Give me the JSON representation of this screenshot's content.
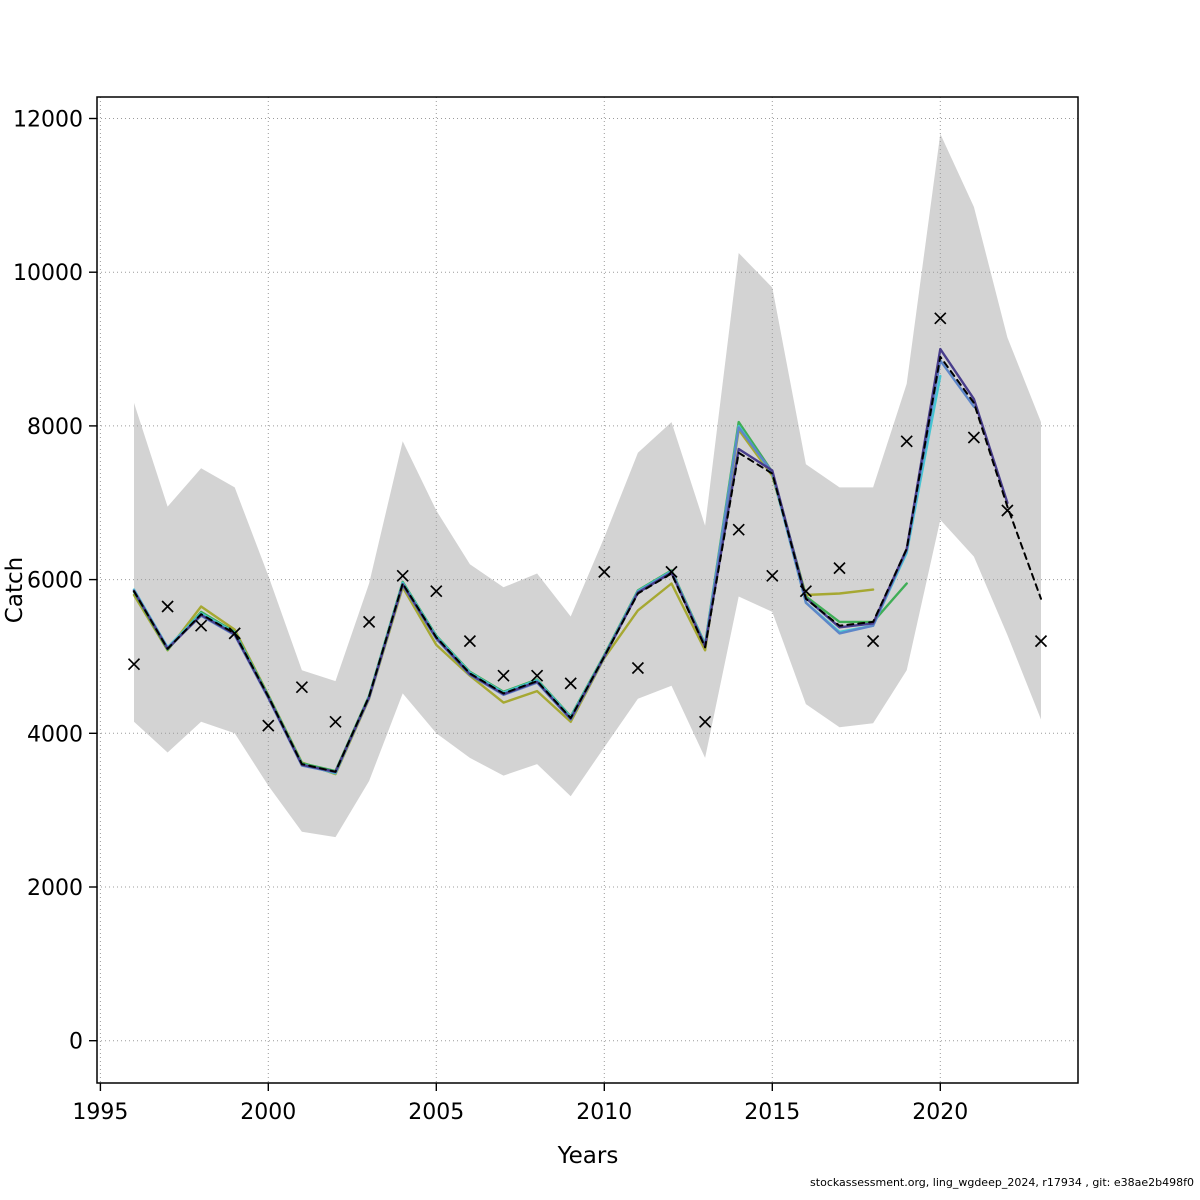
{
  "page": {
    "footer": "stockassessment.org, ling_wgdeep_2024, r17934 , git: e38ae2b498f0"
  },
  "chart_data": {
    "type": "line",
    "title": "",
    "xlabel": "Years",
    "ylabel": "Catch",
    "xlim": [
      1994.9,
      2024.1
    ],
    "ylim": [
      -550,
      12280
    ],
    "xticks": [
      1995,
      2000,
      2005,
      2010,
      2015,
      2020
    ],
    "yticks": [
      0,
      2000,
      4000,
      6000,
      8000,
      10000,
      12000
    ],
    "grid": "dotted",
    "legend_position": "none",
    "band": {
      "name": "confidence-band",
      "color": "#d3d3d3",
      "start_year": 1996,
      "upper": [
        8300,
        6950,
        7450,
        7200,
        6050,
        4820,
        4680,
        5950,
        7800,
        6900,
        6200,
        5900,
        6080,
        5520,
        6550,
        7650,
        8050,
        6700,
        10250,
        9800,
        7500,
        7200,
        7200,
        8550,
        11800,
        10850,
        9150,
        8050
      ],
      "lower": [
        4150,
        3750,
        4150,
        4000,
        3320,
        2720,
        2650,
        3380,
        4520,
        4000,
        3680,
        3450,
        3600,
        3180,
        3820,
        4450,
        4620,
        3680,
        5780,
        5580,
        4380,
        4080,
        4130,
        4820,
        6780,
        6300,
        5280,
        4180
      ]
    },
    "observed": {
      "name": "observed-catch",
      "marker": "x",
      "color": "#000000",
      "start_year": 1996,
      "values": [
        4900,
        5650,
        5400,
        5300,
        4100,
        4600,
        4150,
        5450,
        6050,
        5850,
        5200,
        4750,
        4750,
        4650,
        6100,
        4850,
        6100,
        4150,
        6650,
        6050,
        5850,
        6150,
        5200,
        7800,
        9400,
        7850,
        6900,
        5200
      ]
    },
    "series": [
      {
        "name": "retro-peel-2018",
        "color": "#a6a832",
        "style": "solid",
        "start_year": 1996,
        "values": [
          5800,
          5080,
          5650,
          5350,
          4500,
          3620,
          3470,
          4450,
          5900,
          5150,
          4750,
          4400,
          4550,
          4150,
          4980,
          5600,
          5950,
          5080,
          7950,
          7350,
          5800,
          5820,
          5870
        ]
      },
      {
        "name": "retro-peel-2019",
        "color": "#3fae56",
        "style": "solid",
        "start_year": 1996,
        "values": [
          5840,
          5090,
          5580,
          5320,
          4490,
          3610,
          3510,
          4490,
          5970,
          5270,
          4800,
          4540,
          4700,
          4220,
          5020,
          5860,
          6120,
          5160,
          8050,
          7400,
          5780,
          5450,
          5450,
          5950
        ]
      },
      {
        "name": "retro-peel-2020",
        "color": "#45c5d2",
        "style": "solid",
        "start_year": 1996,
        "values": [
          5870,
          5120,
          5560,
          5310,
          4480,
          3600,
          3480,
          4480,
          5960,
          5260,
          4790,
          4530,
          4690,
          4210,
          5010,
          5850,
          6110,
          5150,
          8000,
          7380,
          5700,
          5320,
          5400,
          6350,
          8650
        ]
      },
      {
        "name": "retro-peel-2021",
        "color": "#5e86c8",
        "style": "solid",
        "start_year": 1996,
        "values": [
          5860,
          5110,
          5530,
          5280,
          4460,
          3580,
          3490,
          4460,
          5930,
          5230,
          4760,
          4500,
          4660,
          4180,
          4990,
          5840,
          6100,
          5140,
          7980,
          7400,
          5700,
          5300,
          5400,
          6380,
          8850,
          8250
        ]
      },
      {
        "name": "retro-peel-2022",
        "color": "#483d8b",
        "style": "solid",
        "start_year": 1996,
        "values": [
          5850,
          5100,
          5540,
          5290,
          4470,
          3590,
          3500,
          4470,
          5940,
          5240,
          4770,
          4510,
          4670,
          4190,
          5000,
          5830,
          6090,
          5130,
          7700,
          7420,
          5760,
          5380,
          5430,
          6400,
          9000,
          8350,
          7000
        ]
      },
      {
        "name": "fitted-catch-2023",
        "color": "#000000",
        "style": "dashed",
        "start_year": 1996,
        "values": [
          5850,
          5100,
          5550,
          5300,
          4480,
          3600,
          3500,
          4480,
          5950,
          5250,
          4780,
          4520,
          4680,
          4200,
          5000,
          5820,
          6080,
          5120,
          7650,
          7380,
          5750,
          5400,
          5450,
          6400,
          8900,
          8300,
          6950,
          5750
        ]
      }
    ]
  }
}
